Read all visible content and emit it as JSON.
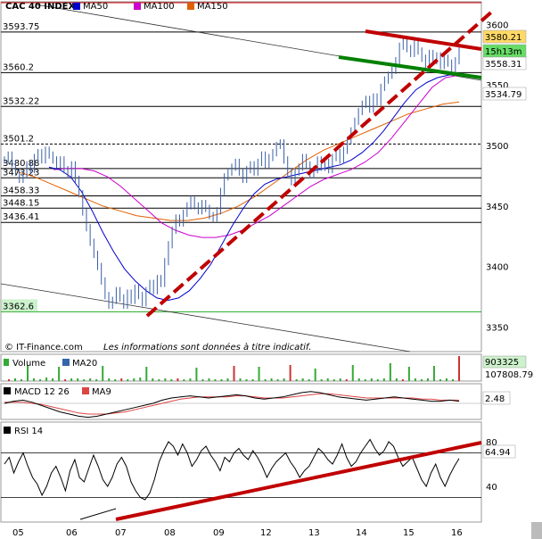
{
  "chart_data": [
    {
      "type": "line",
      "title": "CAC 40 INDEX",
      "x_tick_labels": [
        "05",
        "06",
        "07",
        "08",
        "09",
        "12",
        "13",
        "14",
        "15",
        "16"
      ],
      "ylim": [
        3340,
        3615
      ],
      "y_ticks": [
        3350,
        3400,
        3450,
        3500,
        3550,
        3600
      ],
      "legend": [
        {
          "name": "MA50",
          "color": "#0000cc"
        },
        {
          "name": "MA100",
          "color": "#cc00cc"
        },
        {
          "name": "MA150",
          "color": "#e06000"
        }
      ],
      "levels": [
        {
          "label": "3593.75",
          "value": 3593.75,
          "style": "solid"
        },
        {
          "label": "3560.2",
          "value": 3560.2,
          "style": "solid"
        },
        {
          "label": "3532.22",
          "value": 3532.22,
          "style": "solid"
        },
        {
          "label": "3501.2",
          "value": 3501.2,
          "style": "dashed"
        },
        {
          "label": "3480.88",
          "value": 3480.88,
          "style": "solid"
        },
        {
          "label": "3473.23",
          "value": 3473.23,
          "style": "solid"
        },
        {
          "label": "3458.33",
          "value": 3458.33,
          "style": "solid"
        },
        {
          "label": "3448.15",
          "value": 3448.15,
          "style": "solid"
        },
        {
          "label": "3436.41",
          "value": 3436.41,
          "style": "solid"
        },
        {
          "label": "3362.6",
          "value": 3362.6,
          "style": "green"
        }
      ],
      "right_labels": [
        {
          "label": "3580.21",
          "value": 3580.21,
          "bg": "#ffd966"
        },
        {
          "label": "15h13m",
          "value": 3569,
          "bg": "#66dd66"
        },
        {
          "label": "3558.31",
          "value": 3558.31,
          "bg": "#ffffff"
        },
        {
          "label": "3534.79",
          "value": 3534.79,
          "bg": "#ffffff"
        }
      ],
      "price": [
        3488,
        3492,
        3485,
        3478,
        3472,
        3476,
        3484,
        3480,
        3490,
        3494,
        3488,
        3496,
        3492,
        3488,
        3484,
        3488,
        3480,
        3476,
        3484,
        3472,
        3460,
        3445,
        3432,
        3420,
        3410,
        3400,
        3388,
        3376,
        3368,
        3372,
        3380,
        3374,
        3368,
        3378,
        3372,
        3382,
        3376,
        3370,
        3380,
        3386,
        3380,
        3390,
        3386,
        3404,
        3418,
        3430,
        3440,
        3436,
        3444,
        3450,
        3456,
        3450,
        3446,
        3452,
        3448,
        3442,
        3440,
        3446,
        3462,
        3474,
        3478,
        3482,
        3486,
        3478,
        3472,
        3480,
        3484,
        3478,
        3486,
        3492,
        3484,
        3490,
        3494,
        3500,
        3502,
        3488,
        3478,
        3470,
        3478,
        3482,
        3490,
        3484,
        3476,
        3480,
        3488,
        3482,
        3486,
        3480,
        3490,
        3494,
        3488,
        3496,
        3504,
        3512,
        3520,
        3528,
        3534,
        3538,
        3530,
        3540,
        3536,
        3548,
        3554,
        3558,
        3562,
        3570,
        3582,
        3586,
        3580,
        3576,
        3584,
        3578,
        3572,
        3566,
        3576,
        3570,
        3574,
        3566,
        3572,
        3568,
        3562,
        3570,
        3580
      ],
      "ma50": [
        3482,
        3480,
        3474,
        3462,
        3446,
        3428,
        3412,
        3398,
        3388,
        3380,
        3374,
        3372,
        3374,
        3380,
        3390,
        3402,
        3418,
        3434,
        3448,
        3460,
        3468,
        3472,
        3474,
        3476,
        3478,
        3480,
        3482,
        3484,
        3488,
        3494,
        3502,
        3512,
        3524,
        3536,
        3546,
        3552,
        3556,
        3558,
        3560
      ],
      "ma100": [
        3480,
        3481,
        3481,
        3479,
        3474,
        3466,
        3456,
        3446,
        3436,
        3430,
        3426,
        3424,
        3424,
        3426,
        3430,
        3436,
        3442,
        3450,
        3458,
        3466,
        3472,
        3476,
        3480,
        3486,
        3494,
        3506,
        3520,
        3534,
        3548,
        3556,
        3558
      ],
      "ma150": [
        3478,
        3474,
        3468,
        3462,
        3456,
        3450,
        3446,
        3442,
        3440,
        3438,
        3438,
        3440,
        3444,
        3450,
        3458,
        3468,
        3478,
        3488,
        3496,
        3502,
        3508,
        3514,
        3520,
        3526,
        3530,
        3534,
        3536
      ],
      "trendlines": [
        {
          "name": "support-trendline",
          "from": [
            3358,
            "07"
          ],
          "to": [
            3604,
            "16"
          ],
          "color": "#c00000",
          "style": "dashed"
        },
        {
          "name": "resistance-trendline",
          "color": "#c00000",
          "style": "solid"
        },
        {
          "name": "lower-channel-line",
          "color": "#008000",
          "style": "solid"
        }
      ],
      "watermark": "© IT-Finance.com",
      "disclaimer": "Les informations sont données à titre indicatif."
    },
    {
      "type": "bar",
      "title": "Volume",
      "legend": [
        {
          "name": "MA20",
          "color": "#3366aa"
        }
      ],
      "value_label": "903325",
      "value_label2": "107808.79",
      "values": [
        2,
        3,
        2,
        18,
        3,
        2,
        4,
        3,
        16,
        2,
        3,
        3,
        2,
        3,
        2,
        17,
        3,
        2,
        3,
        2,
        3,
        4,
        16,
        3,
        2,
        3,
        2,
        3,
        2,
        3,
        15,
        2,
        3,
        2,
        2,
        3,
        17,
        3,
        2,
        2,
        16,
        2,
        3,
        2,
        3,
        18,
        2,
        3,
        2,
        14,
        2,
        3,
        2,
        3,
        2,
        18,
        3,
        2,
        3,
        2,
        3,
        20,
        3,
        2,
        16,
        3,
        2,
        3,
        17,
        2,
        3,
        2,
        28
      ]
    },
    {
      "type": "line",
      "title": "MACD 12 26",
      "legend": [
        {
          "name": "MA9",
          "color": "#dd4444"
        }
      ],
      "value_label": "2.48",
      "macd": [
        0,
        2,
        3,
        1,
        -2,
        -5,
        -8,
        -10,
        -12,
        -13,
        -12,
        -10,
        -8,
        -6,
        -4,
        -2,
        0,
        3,
        5,
        6,
        7,
        6,
        5,
        6,
        7,
        8,
        7,
        5,
        4,
        5,
        6,
        8,
        10,
        11,
        10,
        8,
        6,
        5,
        4,
        3,
        4,
        5,
        6,
        5,
        4,
        3,
        2,
        2,
        3,
        2
      ],
      "ma9": [
        1,
        1,
        1,
        0,
        -1,
        -3,
        -5,
        -7,
        -9,
        -10,
        -10,
        -10,
        -9,
        -8,
        -6,
        -4,
        -2,
        0,
        2,
        4,
        5,
        6,
        6,
        6,
        6,
        7,
        7,
        6,
        5,
        5,
        5,
        6,
        7,
        8,
        9,
        9,
        8,
        7,
        6,
        5,
        5,
        5,
        5,
        5,
        5,
        4,
        4,
        3,
        3,
        3
      ]
    },
    {
      "type": "line",
      "title": "RSI 14",
      "ylim": [
        20,
        85
      ],
      "y_ticks": [
        40,
        80
      ],
      "value_label": "64.94",
      "values": [
        60,
        66,
        52,
        62,
        70,
        58,
        48,
        42,
        32,
        40,
        52,
        58,
        48,
        36,
        54,
        64,
        48,
        44,
        56,
        68,
        58,
        46,
        40,
        48,
        60,
        66,
        58,
        44,
        36,
        30,
        28,
        34,
        46,
        62,
        72,
        80,
        76,
        68,
        78,
        70,
        58,
        64,
        72,
        76,
        68,
        62,
        54,
        66,
        62,
        70,
        74,
        68,
        64,
        72,
        66,
        58,
        48,
        56,
        62,
        66,
        70,
        62,
        56,
        48,
        54,
        58,
        66,
        74,
        70,
        64,
        60,
        68,
        78,
        66,
        58,
        62,
        70,
        76,
        82,
        74,
        68,
        72,
        80,
        76,
        66,
        58,
        62,
        66,
        56,
        46,
        40,
        52,
        60,
        48,
        40,
        50,
        58,
        65
      ],
      "trendline": {
        "name": "rsi-trendline",
        "color": "#c00000",
        "style": "solid"
      }
    }
  ]
}
